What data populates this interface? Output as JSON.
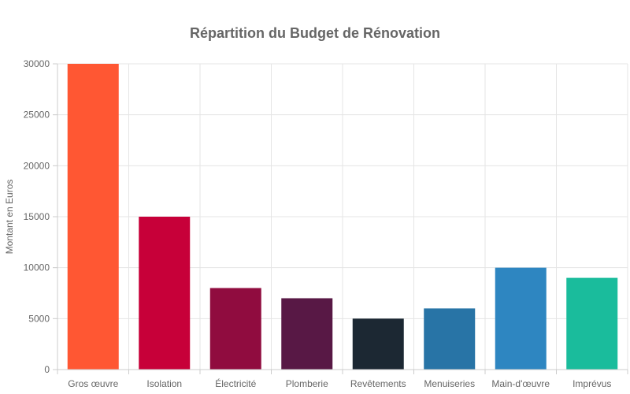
{
  "chart_data": {
    "type": "bar",
    "title": "Répartition du Budget de Rénovation",
    "xlabel": "",
    "ylabel": "Montant en Euros",
    "categories": [
      "Gros œuvre",
      "Isolation",
      "Électricité",
      "Plomberie",
      "Revêtements",
      "Menuiseries",
      "Main-d'œuvre",
      "Imprévus"
    ],
    "values": [
      30000,
      15000,
      8000,
      7000,
      5000,
      6000,
      10000,
      9000
    ],
    "colors": [
      "#FF5733",
      "#C70039",
      "#900C3F",
      "#581845",
      "#1C2833",
      "#2874A6",
      "#2E86C1",
      "#1ABC9C"
    ],
    "ylim": [
      0,
      30000
    ],
    "yticks": [
      "0",
      "5000",
      "10000",
      "15000",
      "20000",
      "25000",
      "30000"
    ],
    "grid": true,
    "legend": "none"
  }
}
